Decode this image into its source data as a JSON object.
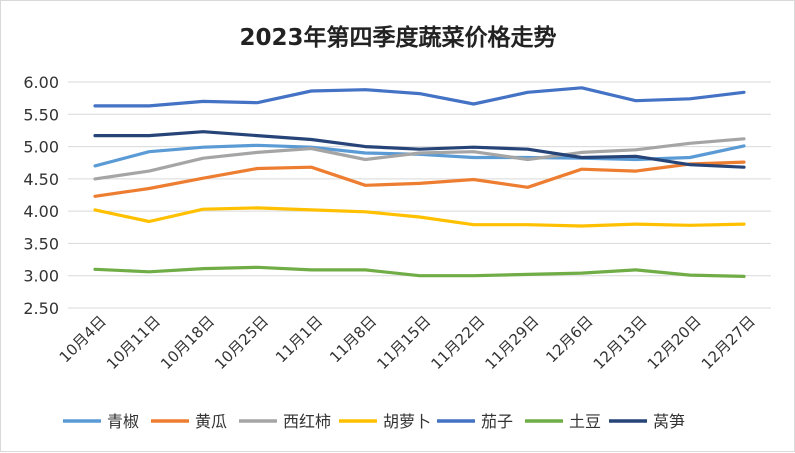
{
  "chart_data": {
    "type": "line",
    "title": "2023年第四季度蔬菜价格走势",
    "xlabel": "",
    "ylabel": "",
    "ylim": [
      2.5,
      6.0
    ],
    "yticks": [
      "2.50",
      "3.00",
      "3.50",
      "4.00",
      "4.50",
      "5.00",
      "5.50",
      "6.00"
    ],
    "grid": true,
    "legend_position": "bottom",
    "categories": [
      "10月4日",
      "10月11日",
      "10月18日",
      "10月25日",
      "11月1日",
      "11月8日",
      "11月15日",
      "11月22日",
      "11月29日",
      "12月6日",
      "12月13日",
      "12月20日",
      "12月27日"
    ],
    "series": [
      {
        "name": "青椒",
        "color": "#5B9BD5",
        "values": [
          4.7,
          4.92,
          4.99,
          5.02,
          4.99,
          4.9,
          4.88,
          4.83,
          4.83,
          4.82,
          4.8,
          4.83,
          5.01
        ]
      },
      {
        "name": "黄瓜",
        "color": "#ED7D31",
        "values": [
          4.23,
          4.35,
          4.51,
          4.66,
          4.68,
          4.4,
          4.43,
          4.49,
          4.37,
          4.65,
          4.62,
          4.73,
          4.76
        ]
      },
      {
        "name": "西红柿",
        "color": "#A5A5A5",
        "values": [
          4.5,
          4.62,
          4.82,
          4.91,
          4.97,
          4.8,
          4.9,
          4.92,
          4.8,
          4.91,
          4.95,
          5.05,
          5.12
        ]
      },
      {
        "name": "胡萝卜",
        "color": "#FFC000",
        "values": [
          4.02,
          3.84,
          4.03,
          4.05,
          4.02,
          3.99,
          3.91,
          3.79,
          3.79,
          3.77,
          3.8,
          3.78,
          3.8
        ]
      },
      {
        "name": "茄子",
        "color": "#4472C4",
        "values": [
          5.63,
          5.63,
          5.7,
          5.68,
          5.86,
          5.88,
          5.82,
          5.66,
          5.84,
          5.91,
          5.71,
          5.74,
          5.84
        ]
      },
      {
        "name": "土豆",
        "color": "#70AD47",
        "values": [
          3.1,
          3.06,
          3.11,
          3.13,
          3.09,
          3.09,
          3.0,
          3.0,
          3.02,
          3.04,
          3.09,
          3.01,
          2.99
        ]
      },
      {
        "name": "莴笋",
        "color": "#264478",
        "values": [
          5.17,
          5.17,
          5.23,
          5.17,
          5.11,
          5.0,
          4.96,
          4.99,
          4.96,
          4.83,
          4.85,
          4.72,
          4.68
        ]
      }
    ]
  }
}
